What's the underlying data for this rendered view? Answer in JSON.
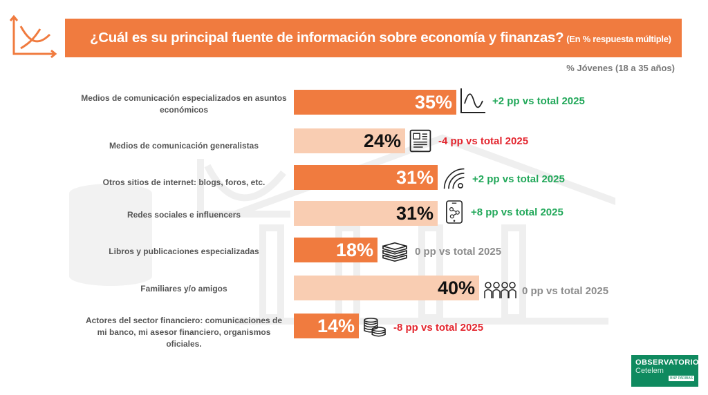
{
  "header": {
    "title": "¿Cuál es su principal fuente de información sobre economía y finanzas?",
    "title_note": "(En % respuesta múltiple)",
    "subtitle": "% Jóvenes (18 a 35 años)"
  },
  "colors": {
    "accent": "#f07b3f",
    "accent_light": "#f9cdb2",
    "positive": "#22a85a",
    "negative": "#e3262f",
    "neutral": "#8c8c8c"
  },
  "chart_data": {
    "type": "bar",
    "orientation": "horizontal",
    "title": "¿Cuál es su principal fuente de información sobre economía y finanzas?",
    "unit": "%",
    "categories": [
      "Medios de comunicación especializados en asuntos económicos",
      "Medios de comunicación generalistas",
      "Otros sitios de internet: blogs, foros, etc.",
      "Redes sociales e influencers",
      "Libros y publicaciones especializadas",
      "Familiares y/o amigos",
      "Actores del sector financiero: comunicaciones de mi banco, mi asesor financiero, organismos oficiales."
    ],
    "values": [
      35,
      24,
      31,
      31,
      18,
      40,
      14
    ],
    "value_labels": [
      "35%",
      "24%",
      "31%",
      "31%",
      "18%",
      "40%",
      "14%"
    ],
    "bar_style": [
      "dark",
      "light",
      "dark",
      "light",
      "dark",
      "light",
      "dark"
    ],
    "icons": [
      "wave-chart-icon",
      "newspaper-icon",
      "wifi-icon",
      "smartphone-network-icon",
      "books-icon",
      "people-group-icon",
      "coins-stack-icon"
    ],
    "deltas": [
      {
        "text": "+2 pp vs total 2025",
        "trend": "positive"
      },
      {
        "text": "-4 pp vs total 2025",
        "trend": "negative"
      },
      {
        "text": "+2 pp vs total 2025",
        "trend": "positive"
      },
      {
        "text": "+8 pp vs total 2025",
        "trend": "positive"
      },
      {
        "text": "0 pp vs total 2025",
        "trend": "neutral"
      },
      {
        "text": "0 pp vs total 2025",
        "trend": "neutral"
      },
      {
        "text": "-8 pp vs total 2025",
        "trend": "negative"
      }
    ]
  },
  "footer": {
    "brand": "OBSERVATORIO",
    "brand_sub": "Cetelem",
    "parent": "BNP PARIBAS"
  }
}
